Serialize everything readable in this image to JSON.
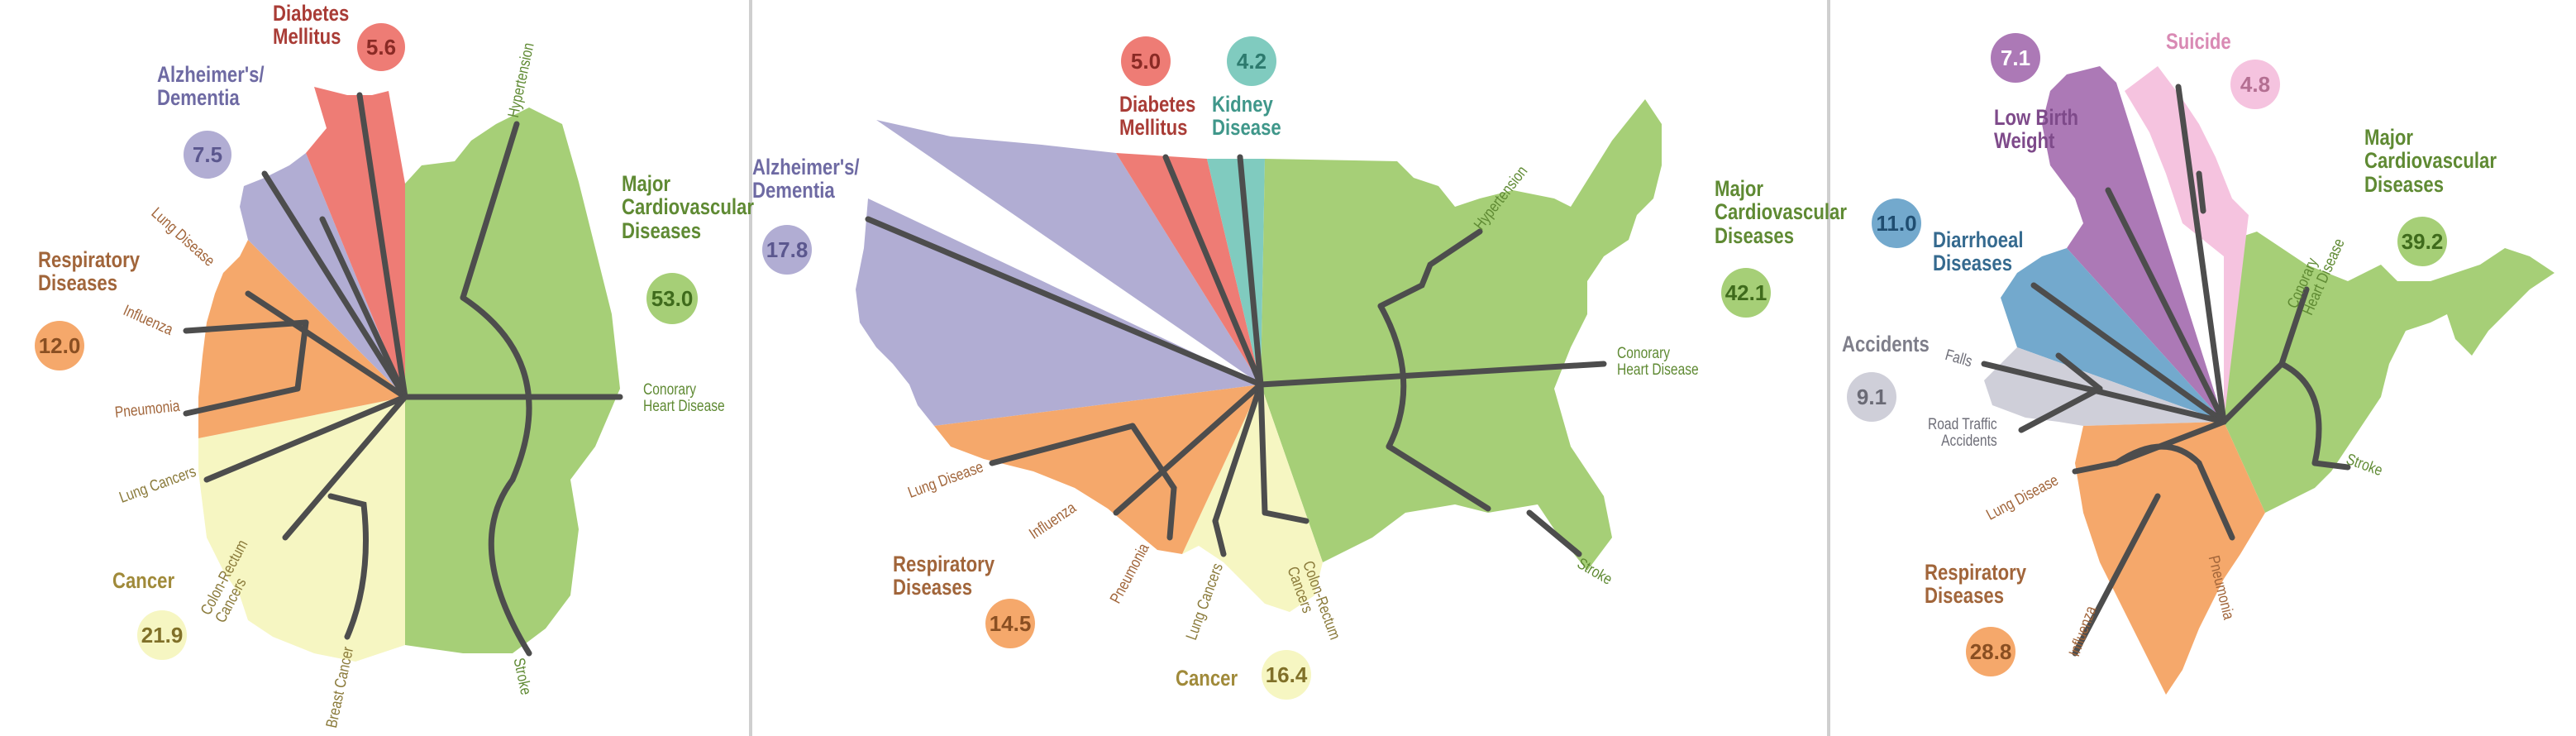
{
  "colors": {
    "cardio": "#a6cf77",
    "respiratory": "#f5a86b",
    "alzheimers": "#b1add3",
    "diabetes": "#ee7c75",
    "cancer": "#f6f6c2",
    "kidney": "#80cbbf",
    "diarrhoeal": "#73a9cd",
    "lowbirth": "#ac79b6",
    "suicide": "#f5c3df",
    "accidents": "#cfcfd9",
    "branch": "#4d4d4d"
  },
  "panels": [
    {
      "id": "germany",
      "categories": [
        {
          "key": "diabetes",
          "name": "Diabetes\nMellitus",
          "value": "5.6",
          "label_color": "#a93c36",
          "bubble_text": "#8a2a25"
        },
        {
          "key": "alzheimers",
          "name": "Alzheimer's/\nDementia",
          "value": "7.5",
          "label_color": "#6e6aa3",
          "bubble_text": "#5b578e"
        },
        {
          "key": "respiratory",
          "name": "Respiratory\nDiseases",
          "value": "12.0",
          "label_color": "#a1653a",
          "bubble_text": "#8a4f22"
        },
        {
          "key": "cardio",
          "name": "Major\nCardiovascular\nDiseases",
          "value": "53.0",
          "label_color": "#5f8a33",
          "bubble_text": "#3f6b1c"
        },
        {
          "key": "cancer",
          "name": "Cancer",
          "value": "21.9",
          "label_color": "#a08a3a",
          "bubble_text": "#807028"
        }
      ],
      "sublabels": [
        "Hypertension",
        "Conorary\nHeart Disease",
        "Stroke",
        "Lung Disease",
        "Influenza",
        "Pneumonia",
        "Lung Cancers",
        "Colon-Rectum\nCancers",
        "Breast Cancer"
      ]
    },
    {
      "id": "usa",
      "categories": [
        {
          "key": "diabetes",
          "name": "Diabetes\nMellitus",
          "value": "5.0",
          "label_color": "#a93c36",
          "bubble_text": "#8a2a25"
        },
        {
          "key": "kidney",
          "name": "Kidney\nDisease",
          "value": "4.2",
          "label_color": "#3f978a",
          "bubble_text": "#2d7a6e"
        },
        {
          "key": "alzheimers",
          "name": "Alzheimer's/\nDementia",
          "value": "17.8",
          "label_color": "#6e6aa3",
          "bubble_text": "#5b578e"
        },
        {
          "key": "cardio",
          "name": "Major\nCardiovascular\nDiseases",
          "value": "42.1",
          "label_color": "#5f8a33",
          "bubble_text": "#3f6b1c"
        },
        {
          "key": "respiratory",
          "name": "Respiratory\nDiseases",
          "value": "14.5",
          "label_color": "#a1653a",
          "bubble_text": "#8a4f22"
        },
        {
          "key": "cancer",
          "name": "Cancer",
          "value": "16.4",
          "label_color": "#a08a3a",
          "bubble_text": "#807028"
        }
      ],
      "sublabels": [
        "Hypertension",
        "Conorary\nHeart Disease",
        "Stroke",
        "Lung Disease",
        "Influenza",
        "Pneumonia",
        "Lung Cancers",
        "Colon-Rectum\nCancers"
      ]
    },
    {
      "id": "india",
      "categories": [
        {
          "key": "lowbirth",
          "name": "Low Birth\nWeight",
          "value": "7.1",
          "label_color": "#7e4a8a",
          "bubble_text": "#ffffff"
        },
        {
          "key": "suicide",
          "name": "Suicide",
          "value": "4.8",
          "label_color": "#d98ab4",
          "bubble_text": "#b46f92"
        },
        {
          "key": "cardio",
          "name": "Major\nCardiovascular\nDiseases",
          "value": "39.2",
          "label_color": "#5f8a33",
          "bubble_text": "#3f6b1c"
        },
        {
          "key": "diarrhoeal",
          "name": "Diarrhoeal\nDiseases",
          "value": "11.0",
          "label_color": "#356a8f",
          "bubble_text": "#1f4d70"
        },
        {
          "key": "accidents",
          "name": "Accidents",
          "value": "9.1",
          "label_color": "#7e7e8a",
          "bubble_text": "#6a6a75"
        },
        {
          "key": "respiratory",
          "name": "Respiratory\nDiseases",
          "value": "28.8",
          "label_color": "#a1653a",
          "bubble_text": "#8a4f22"
        }
      ],
      "sublabels": [
        "Conorary\nHeart Disease",
        "Stroke",
        "Falls",
        "Road Traffic\nAccidents",
        "Lung Disease",
        "Influenza",
        "Pneumonia"
      ]
    }
  ]
}
